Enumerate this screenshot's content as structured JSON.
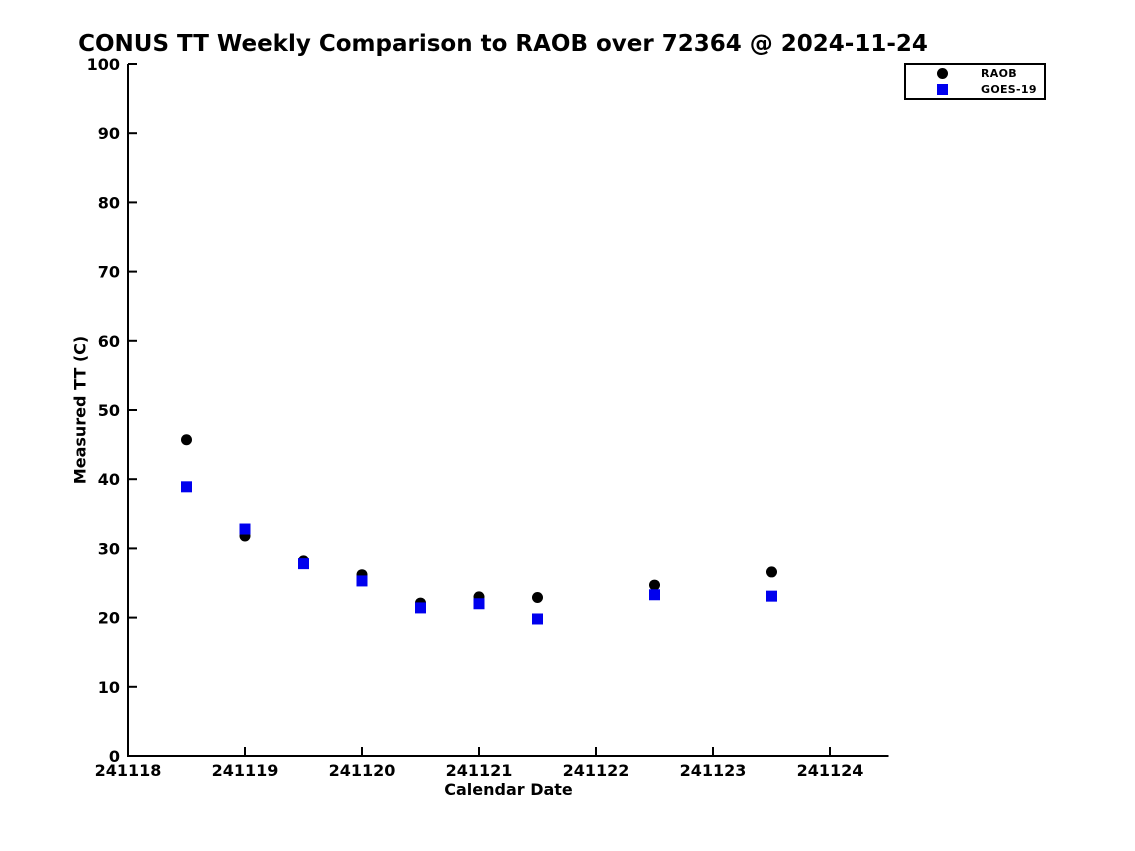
{
  "page": {
    "background": "#ffffff"
  },
  "chart_data": {
    "type": "scatter",
    "title": "CONUS TT Weekly Comparison to RAOB over 72364 @ 2024-11-24",
    "xlabel": "Calendar Date",
    "ylabel": "Measured TT (C)",
    "xlim": [
      241118,
      241124.5
    ],
    "ylim": [
      0,
      100
    ],
    "x_ticks": [
      241118,
      241119,
      241120,
      241121,
      241122,
      241123,
      241124
    ],
    "x_tick_labels": [
      "241118",
      "241119",
      "241120",
      "241121",
      "241122",
      "241123",
      "241124"
    ],
    "y_ticks": [
      0,
      10,
      20,
      30,
      40,
      50,
      60,
      70,
      80,
      90,
      100
    ],
    "y_tick_labels": [
      "0",
      "10",
      "20",
      "30",
      "40",
      "50",
      "60",
      "70",
      "80",
      "90",
      "100"
    ],
    "grid": false,
    "axis_color": "#000000",
    "legend_position": "top-right",
    "series": [
      {
        "name": "RAOB",
        "marker": "circle",
        "color": "#000000",
        "x": [
          241118.5,
          241119,
          241119.5,
          241120,
          241120.5,
          241121,
          241121.5,
          241122.5,
          241123.5
        ],
        "y": [
          45.7,
          31.8,
          28.2,
          26.2,
          22.1,
          23.0,
          22.9,
          24.7,
          26.6
        ]
      },
      {
        "name": "GOES-19",
        "marker": "square",
        "color": "#0000EE",
        "x": [
          241118.5,
          241119,
          241119.5,
          241120,
          241120.5,
          241121,
          241121.5,
          241122.5,
          241123.5
        ],
        "y": [
          38.9,
          32.8,
          27.8,
          25.3,
          21.4,
          22.0,
          19.8,
          23.3,
          23.1
        ]
      }
    ]
  }
}
